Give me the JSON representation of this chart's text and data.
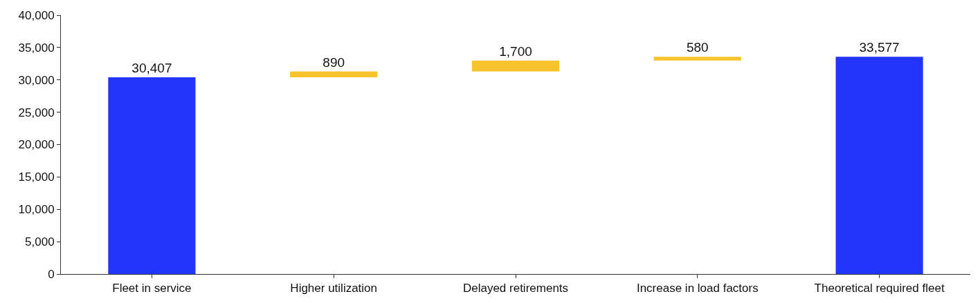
{
  "chart_data": {
    "type": "bar",
    "categories": [
      "Fleet in service",
      "Higher utilization",
      "Delayed retirements",
      "Increase in load factors",
      "Theoretical required fleet"
    ],
    "values": [
      30407,
      890,
      1700,
      580,
      33577
    ],
    "base": [
      0,
      30407,
      31297,
      32997,
      0
    ],
    "colors": [
      "#2236fb",
      "#f8c42e",
      "#f8c42e",
      "#f8c42e",
      "#2236fb"
    ],
    "value_labels": [
      "30,407",
      "890",
      "1,700",
      "580",
      "33,577"
    ],
    "ylim": [
      0,
      40000
    ],
    "yticks": [
      {
        "value": 0,
        "label": "0"
      },
      {
        "value": 5000,
        "label": "5,000"
      },
      {
        "value": 10000,
        "label": "10,000"
      },
      {
        "value": 15000,
        "label": "15,000"
      },
      {
        "value": 20000,
        "label": "20,000"
      },
      {
        "value": 25000,
        "label": "25,000"
      },
      {
        "value": 30000,
        "label": "30,000"
      },
      {
        "value": 35000,
        "label": "35,000"
      },
      {
        "value": 40000,
        "label": "40,000"
      }
    ],
    "legend": false
  }
}
